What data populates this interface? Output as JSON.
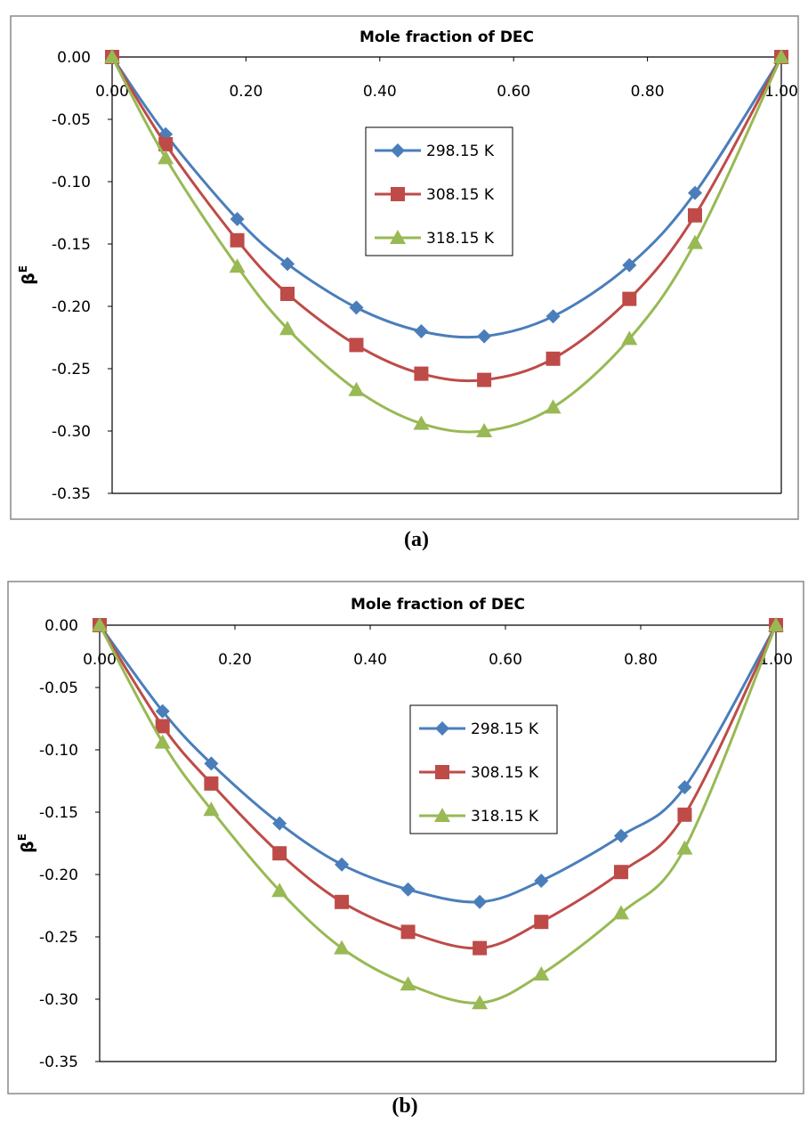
{
  "chart_data": [
    {
      "type": "line",
      "panel_label": "(a)",
      "xlabel": "Mole fraction of DEC",
      "ylabel": "β",
      "ylabel_sup": "E",
      "xlim": [
        0,
        1
      ],
      "ylim": [
        -0.35,
        0
      ],
      "xticks": [
        "0.00",
        "0.20",
        "0.40",
        "0.60",
        "0.80",
        "1.00"
      ],
      "yticks": [
        "0.00",
        "-0.05",
        "-0.10",
        "-0.15",
        "-0.20",
        "-0.25",
        "-0.30",
        "-0.35"
      ],
      "legend_position": "upper-center",
      "series": [
        {
          "name": "298.15 K",
          "color": "#4a7ebb",
          "marker": "diamond",
          "x": [
            0,
            0.08,
            0.187,
            0.262,
            0.365,
            0.462,
            0.556,
            0.659,
            0.773,
            0.871,
            1.0
          ],
          "y": [
            0,
            -0.062,
            -0.13,
            -0.166,
            -0.201,
            -0.22,
            -0.224,
            -0.208,
            -0.167,
            -0.109,
            0
          ]
        },
        {
          "name": "308.15 K",
          "color": "#be4b48",
          "marker": "square",
          "x": [
            0,
            0.08,
            0.187,
            0.262,
            0.365,
            0.462,
            0.556,
            0.659,
            0.773,
            0.871,
            1.0
          ],
          "y": [
            0,
            -0.07,
            -0.147,
            -0.19,
            -0.231,
            -0.254,
            -0.259,
            -0.242,
            -0.194,
            -0.127,
            0
          ]
        },
        {
          "name": "318.15 K",
          "color": "#98b954",
          "marker": "triangle",
          "x": [
            0,
            0.08,
            0.187,
            0.262,
            0.365,
            0.462,
            0.556,
            0.659,
            0.773,
            0.871,
            1.0
          ],
          "y": [
            0,
            -0.081,
            -0.168,
            -0.218,
            -0.267,
            -0.294,
            -0.3,
            -0.281,
            -0.226,
            -0.149,
            0
          ]
        }
      ]
    },
    {
      "type": "line",
      "panel_label": "(b)",
      "xlabel": "Mole fraction of DEC",
      "ylabel": "β",
      "ylabel_sup": "E",
      "xlim": [
        0,
        1
      ],
      "ylim": [
        -0.35,
        0
      ],
      "xticks": [
        "0.00",
        "0.20",
        "0.40",
        "0.60",
        "0.80",
        "1.00"
      ],
      "yticks": [
        "0.00",
        "-0.05",
        "-0.10",
        "-0.15",
        "-0.20",
        "-0.25",
        "-0.30",
        "-0.35"
      ],
      "legend_position": "center-right",
      "series": [
        {
          "name": "298.15 K",
          "color": "#4a7ebb",
          "marker": "diamond",
          "x": [
            0,
            0.093,
            0.165,
            0.266,
            0.358,
            0.456,
            0.562,
            0.653,
            0.771,
            0.865,
            1.0
          ],
          "y": [
            0,
            -0.069,
            -0.111,
            -0.159,
            -0.192,
            -0.212,
            -0.222,
            -0.205,
            -0.169,
            -0.13,
            0
          ]
        },
        {
          "name": "308.15 K",
          "color": "#be4b48",
          "marker": "square",
          "x": [
            0,
            0.093,
            0.165,
            0.266,
            0.358,
            0.456,
            0.562,
            0.653,
            0.771,
            0.865,
            1.0
          ],
          "y": [
            0,
            -0.081,
            -0.127,
            -0.183,
            -0.222,
            -0.246,
            -0.259,
            -0.238,
            -0.198,
            -0.152,
            0
          ]
        },
        {
          "name": "318.15 K",
          "color": "#98b954",
          "marker": "triangle",
          "x": [
            0,
            0.093,
            0.165,
            0.266,
            0.358,
            0.456,
            0.562,
            0.653,
            0.771,
            0.865,
            1.0
          ],
          "y": [
            0,
            -0.094,
            -0.148,
            -0.213,
            -0.259,
            -0.288,
            -0.303,
            -0.28,
            -0.231,
            -0.179,
            0
          ]
        }
      ]
    }
  ]
}
